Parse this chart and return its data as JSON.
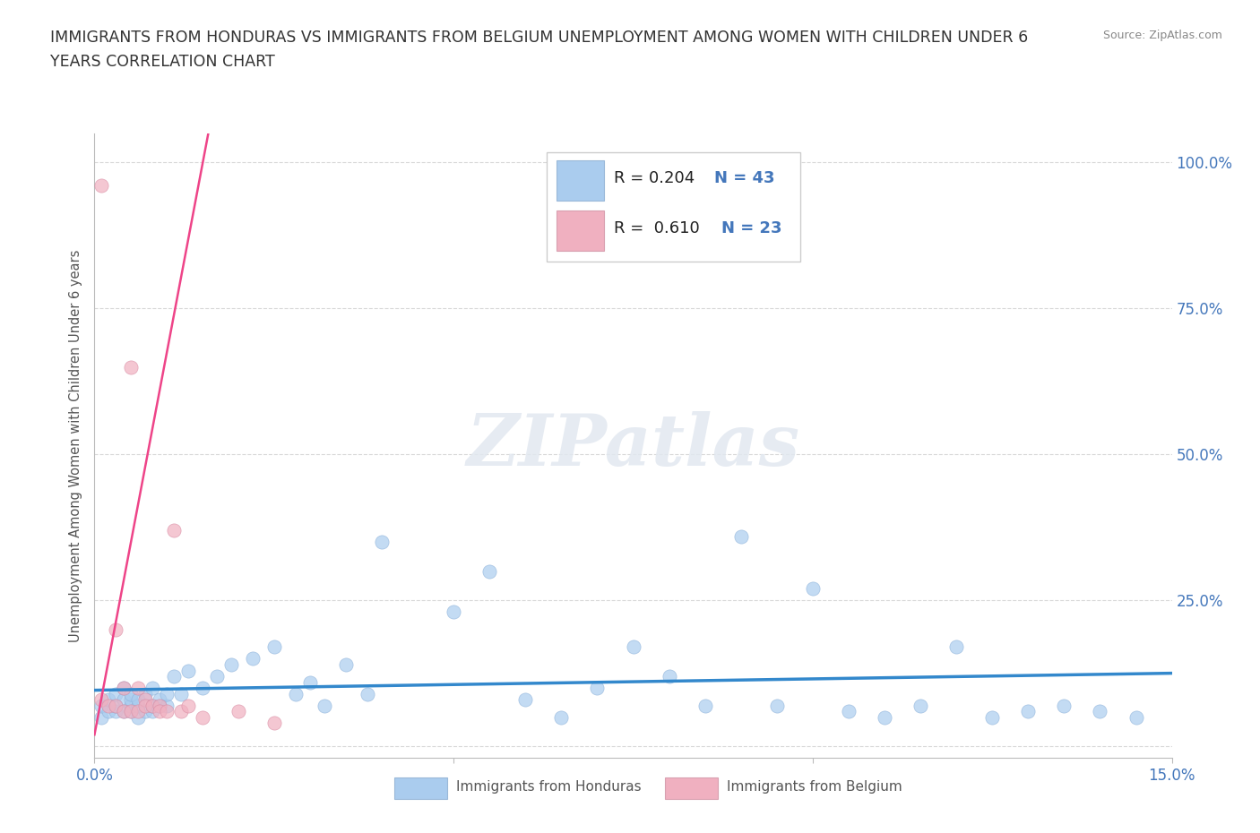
{
  "title_line1": "IMMIGRANTS FROM HONDURAS VS IMMIGRANTS FROM BELGIUM UNEMPLOYMENT AMONG WOMEN WITH CHILDREN UNDER 6",
  "title_line2": "YEARS CORRELATION CHART",
  "source": "Source: ZipAtlas.com",
  "ylabel": "Unemployment Among Women with Children Under 6 years",
  "xlim": [
    0.0,
    0.15
  ],
  "ylim": [
    -0.02,
    1.05
  ],
  "y_ticks": [
    0.0,
    0.25,
    0.5,
    0.75,
    1.0
  ],
  "y_tick_labels": [
    "",
    "25.0%",
    "50.0%",
    "75.0%",
    "100.0%"
  ],
  "background_color": "#ffffff",
  "grid_color": "#d8d8d8",
  "watermark": "ZIPatlas",
  "series1_color": "#aaccee",
  "series2_color": "#f0b0c0",
  "trendline1_color": "#3388cc",
  "trendline2_color": "#ee4488",
  "title_color": "#333333",
  "label_color": "#4477bb",
  "honduras_x": [
    0.001,
    0.001,
    0.002,
    0.002,
    0.003,
    0.003,
    0.003,
    0.004,
    0.004,
    0.004,
    0.005,
    0.005,
    0.005,
    0.005,
    0.006,
    0.006,
    0.006,
    0.007,
    0.007,
    0.008,
    0.008,
    0.008,
    0.009,
    0.009,
    0.01,
    0.01,
    0.011,
    0.012,
    0.013,
    0.015,
    0.017,
    0.019,
    0.022,
    0.025,
    0.028,
    0.03,
    0.032,
    0.035,
    0.038,
    0.04,
    0.05,
    0.055,
    0.06,
    0.065,
    0.07,
    0.075,
    0.08,
    0.085,
    0.09,
    0.095,
    0.1,
    0.105,
    0.11,
    0.115,
    0.12,
    0.125,
    0.13,
    0.135,
    0.14,
    0.145
  ],
  "honduras_y": [
    0.05,
    0.07,
    0.06,
    0.08,
    0.06,
    0.07,
    0.09,
    0.06,
    0.08,
    0.1,
    0.06,
    0.07,
    0.08,
    0.09,
    0.05,
    0.07,
    0.08,
    0.06,
    0.09,
    0.06,
    0.07,
    0.1,
    0.07,
    0.08,
    0.07,
    0.09,
    0.12,
    0.09,
    0.13,
    0.1,
    0.12,
    0.14,
    0.15,
    0.17,
    0.09,
    0.11,
    0.07,
    0.14,
    0.09,
    0.35,
    0.23,
    0.3,
    0.08,
    0.05,
    0.1,
    0.17,
    0.12,
    0.07,
    0.36,
    0.07,
    0.27,
    0.06,
    0.05,
    0.07,
    0.17,
    0.05,
    0.06,
    0.07,
    0.06,
    0.05
  ],
  "belgium_x": [
    0.001,
    0.001,
    0.002,
    0.003,
    0.003,
    0.004,
    0.004,
    0.005,
    0.005,
    0.006,
    0.006,
    0.007,
    0.007,
    0.008,
    0.009,
    0.009,
    0.01,
    0.011,
    0.012,
    0.013,
    0.015,
    0.02,
    0.025
  ],
  "belgium_y": [
    0.96,
    0.08,
    0.07,
    0.2,
    0.07,
    0.1,
    0.06,
    0.65,
    0.06,
    0.1,
    0.06,
    0.08,
    0.07,
    0.07,
    0.07,
    0.06,
    0.06,
    0.37,
    0.06,
    0.07,
    0.05,
    0.06,
    0.04
  ],
  "trendline1_x0": 0.0,
  "trendline1_x1": 0.15,
  "trendline2_x_solid_start": 0.003,
  "trendline2_x_solid_end": 0.017,
  "trendline2_x_dash_start": 0.017,
  "trendline2_x_dash_end": 0.04
}
